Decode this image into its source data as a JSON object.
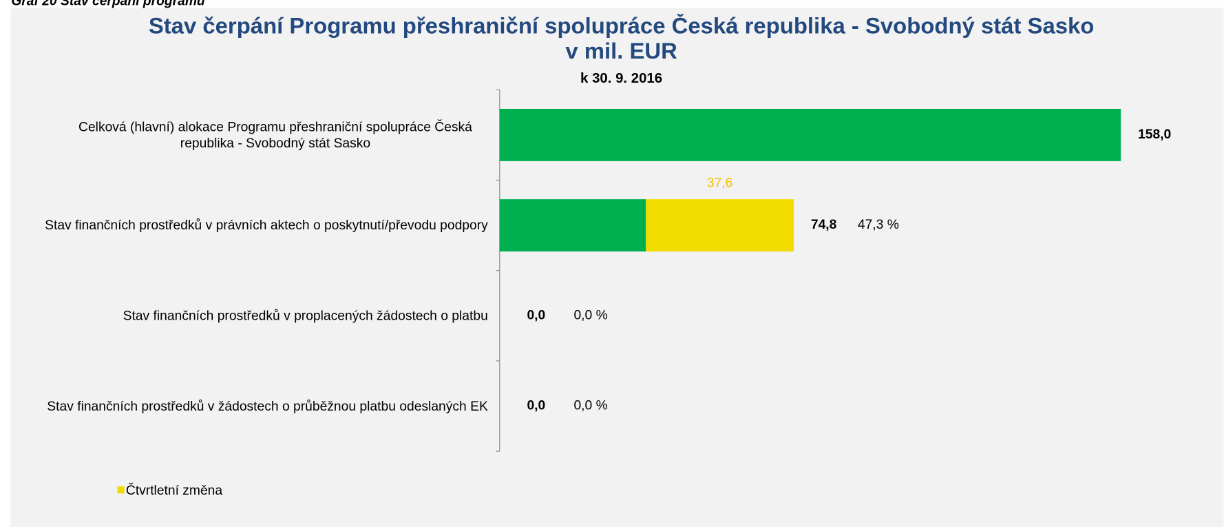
{
  "caption": "Graf 20 Stav čerpání programu",
  "chart_data": {
    "type": "stacked-barh",
    "title": "Stav čerpání Programu přeshraniční spolupráce Česká republika - Svobodný stát Sasko v mil. EUR",
    "subtitle": "k 30. 9. 2016",
    "categories": [
      "Celková (hlavní) alokace Programu přeshraniční spolupráce Česká republika - Svobodný stát Sasko",
      "Stav finančních prostředků v právních aktech o poskytnutí/převodu podpory",
      "Stav finančních prostředků v proplacených žádostech o platbu",
      "Stav finančních prostředků v žádostech o průběžnou platbu odeslaných EK"
    ],
    "series": [
      {
        "color": "#00b050",
        "values": [
          158.0,
          37.2,
          0,
          0
        ]
      },
      {
        "name": "Čtvrtletní změna",
        "color": "#f2dc00",
        "label_color": "#f5c000",
        "values": [
          null,
          37.6,
          null,
          null
        ],
        "value_labels": [
          null,
          "37,6",
          null,
          null
        ]
      }
    ],
    "totals": {
      "values": [
        158.0,
        74.8,
        0,
        0
      ],
      "value_labels": [
        "158,0",
        "74,8",
        "0,0",
        "0,0"
      ]
    },
    "shares": {
      "values": [
        null,
        47.3,
        0,
        0
      ],
      "value_labels": [
        null,
        "47,3 %",
        "0,0 %",
        "0,0 %"
      ]
    },
    "xlim": [
      0,
      180
    ],
    "legend": "bottom-left"
  }
}
